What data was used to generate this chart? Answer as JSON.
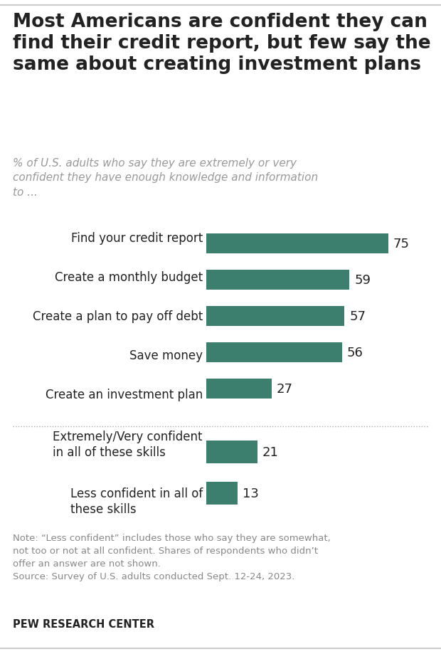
{
  "title": "Most Americans are confident they can\nfind their credit report, but few say the\nsame about creating investment plans",
  "subtitle": "% of U.S. adults who say they are extremely or very\nconfident they have enough knowledge and information\nto ...",
  "categories": [
    "Find your credit report",
    "Create a monthly budget",
    "Create a plan to pay off debt",
    "Save money",
    "Create an investment plan"
  ],
  "values": [
    75,
    59,
    57,
    56,
    27
  ],
  "summary_categories": [
    "Extremely/Very confident\nin all of these skills",
    "Less confident in all of\nthese skills"
  ],
  "summary_values": [
    21,
    13
  ],
  "bar_color": "#3d7f6e",
  "note_line1": "Note: “Less confident” includes those who say they are somewhat,",
  "note_line2": "not too or not at all confident. Shares of respondents who didn’t",
  "note_line3": "offer an answer are not shown.",
  "note_line4": "Source: Survey of U.S. adults conducted Sept. 12-24, 2023.",
  "source_label": "PEW RESEARCH CENTER",
  "background_color": "#ffffff",
  "text_color": "#222222",
  "subtitle_color": "#999999",
  "note_color": "#888888",
  "xlim": [
    0,
    85
  ],
  "bar_height": 0.55
}
